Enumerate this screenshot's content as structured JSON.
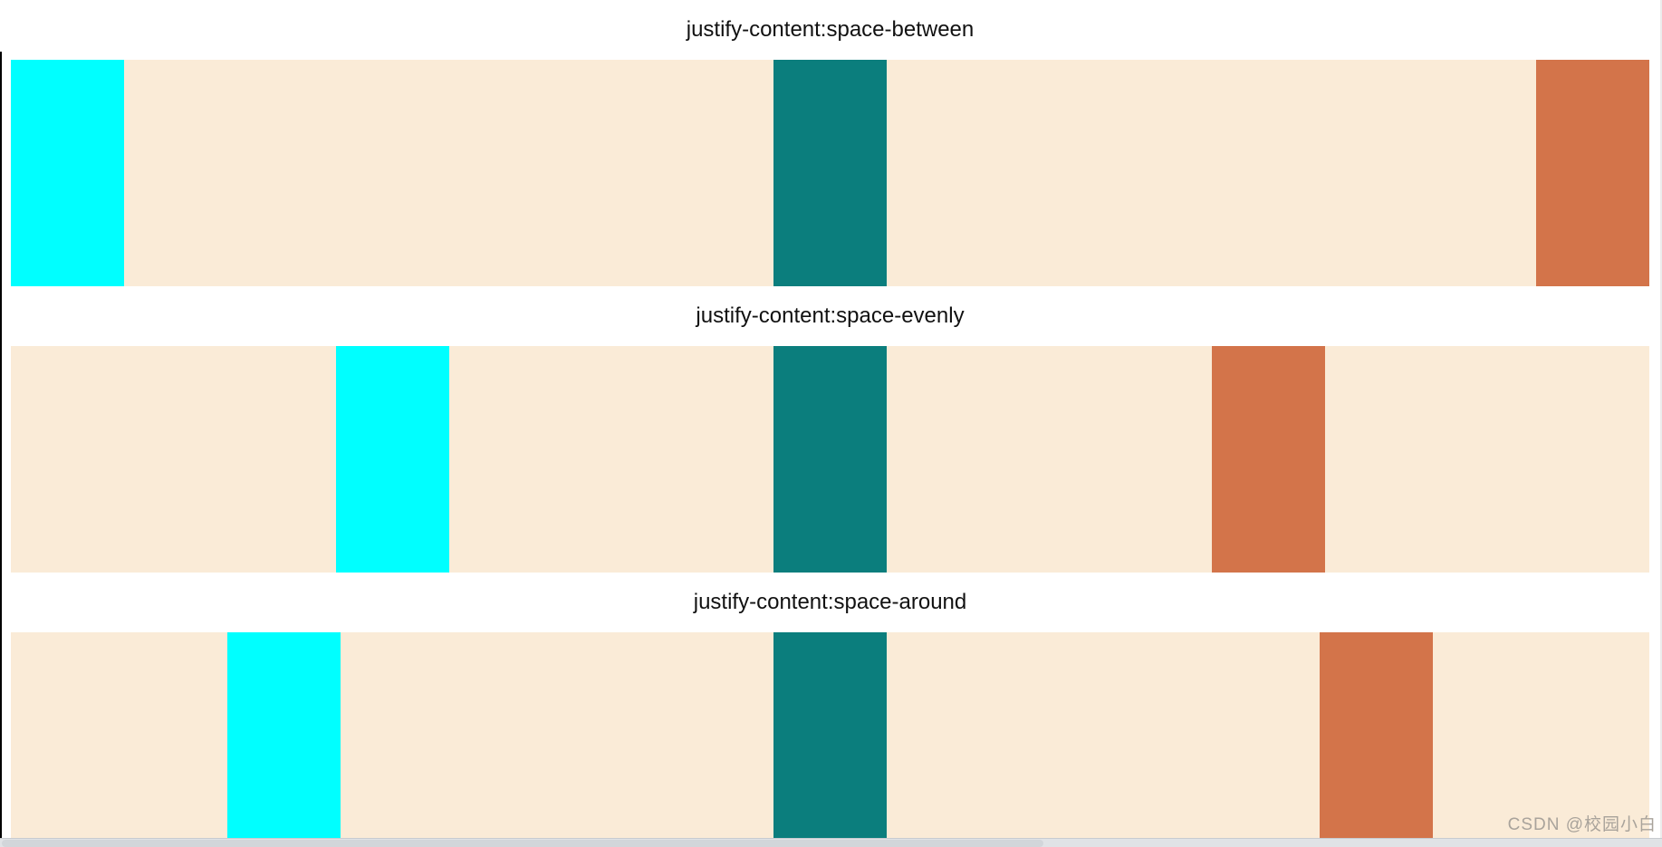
{
  "page": {
    "background": "#ffffff",
    "left_border_color": "#000000",
    "scrollbar_track_color": "#e0e3e6",
    "scrollbar_thumb_color": "#d2d6da"
  },
  "colors": {
    "container_bg": "#faebd7",
    "item_cyan": "#00ffff",
    "item_teal": "#0b7e7d",
    "item_orange": "#d3744a"
  },
  "sections": [
    {
      "title": "justify-content:space-between",
      "justify": "space-between"
    },
    {
      "title": "justify-content:space-evenly",
      "justify": "space-evenly"
    },
    {
      "title": "justify-content:space-around",
      "justify": "space-around"
    }
  ],
  "watermark": {
    "text": "CSDN @校园小白",
    "color": "#a9a39b"
  }
}
